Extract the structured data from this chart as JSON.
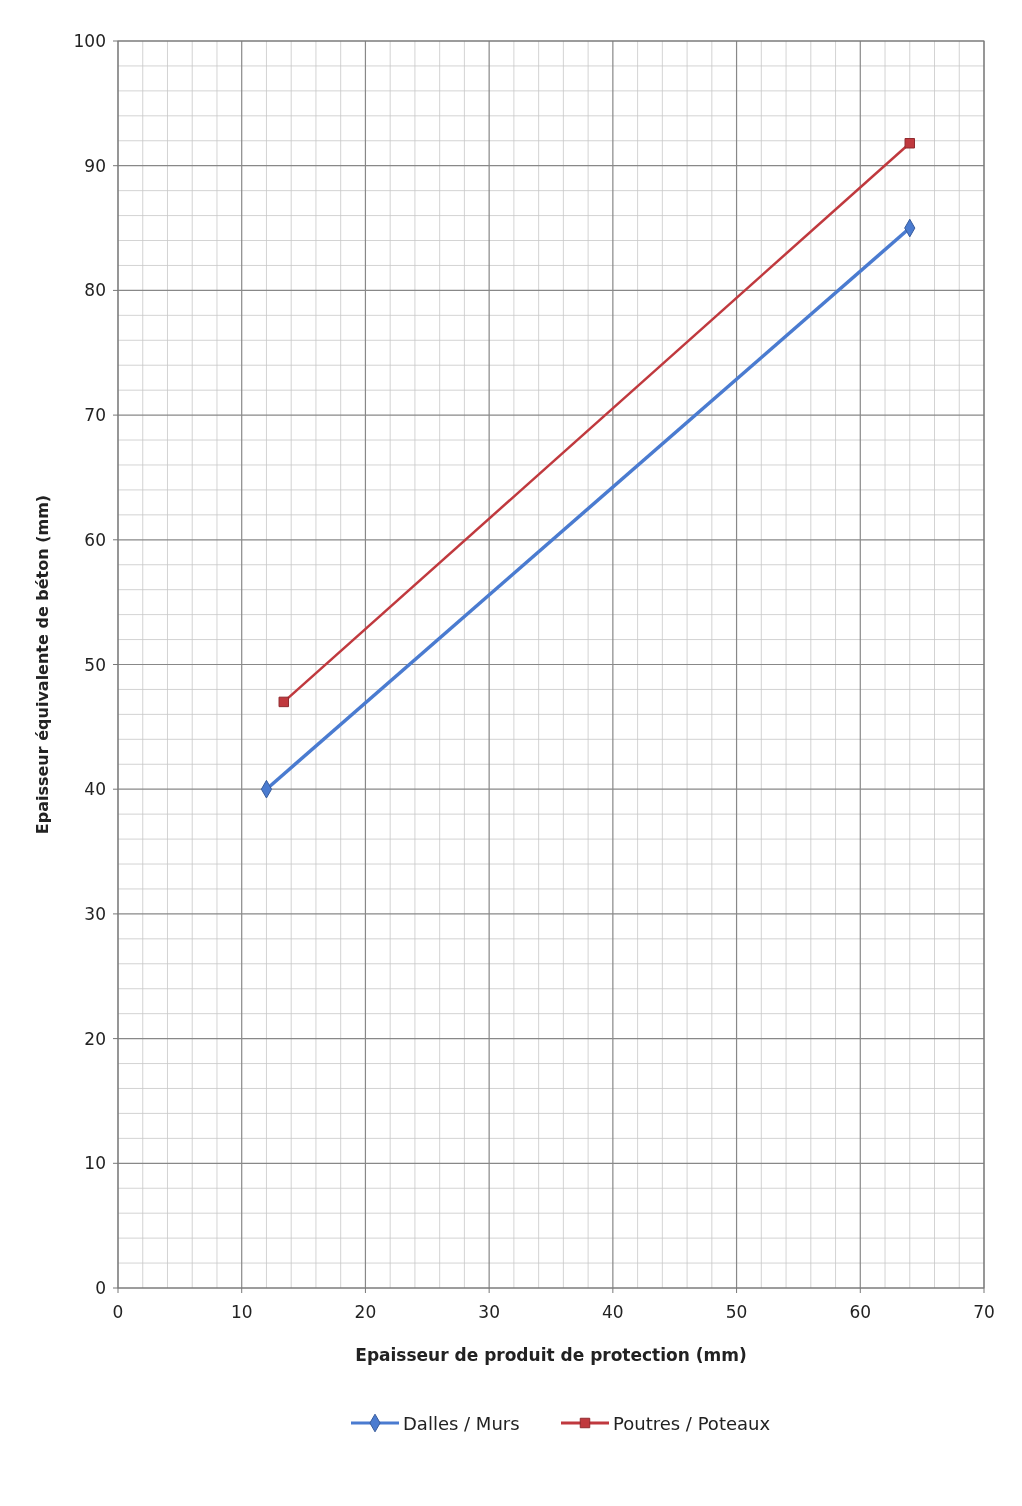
{
  "chart_data": {
    "type": "line",
    "xlabel": "Epaisseur  de produit de protection (mm)",
    "ylabel": "Epaisseur  équivalente de béton (mm)",
    "series": [
      {
        "name": "Dalles / Murs",
        "color": "#4a7bd0",
        "marker": "diamond",
        "x": [
          12,
          64
        ],
        "values": [
          40,
          85
        ]
      },
      {
        "name": "Poutres / Poteaux",
        "color": "#c0393e",
        "marker": "square",
        "x": [
          13.4,
          64
        ],
        "values": [
          47,
          91.8
        ]
      }
    ],
    "xlim": [
      0,
      70
    ],
    "xticks": [
      0,
      10,
      20,
      30,
      40,
      50,
      60,
      70
    ],
    "ylim": [
      0,
      100
    ],
    "yticks": [
      0,
      10,
      20,
      30,
      40,
      50,
      60,
      70,
      80,
      90,
      100
    ],
    "grid": true,
    "legend": "bottom"
  }
}
